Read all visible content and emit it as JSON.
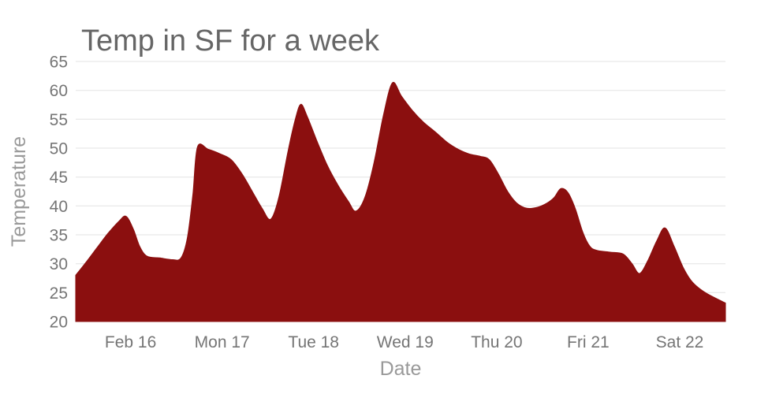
{
  "chart_data": {
    "type": "area",
    "title": "Temp in SF for a week",
    "xlabel": "Date",
    "ylabel": "Temperature",
    "ylim": [
      20,
      65
    ],
    "y_ticks": [
      20,
      25,
      30,
      35,
      40,
      45,
      50,
      55,
      60,
      65
    ],
    "x_range": [
      15.4,
      22.5
    ],
    "x_ticks": [
      {
        "day": 16,
        "label": "Feb 16"
      },
      {
        "day": 17,
        "label": "Mon 17"
      },
      {
        "day": 18,
        "label": "Tue 18"
      },
      {
        "day": 19,
        "label": "Wed 19"
      },
      {
        "day": 20,
        "label": "Thu 20"
      },
      {
        "day": 21,
        "label": "Fri 21"
      },
      {
        "day": 22,
        "label": "Sat 22"
      }
    ],
    "grid": "horizontal",
    "legend": "none",
    "background_color": "#ffffff",
    "gridline_color": "#e3e3e3",
    "title_color": "#666666",
    "axis_title_color": "#999999",
    "tick_label_color": "#757575",
    "series": [
      {
        "name": "Temperature",
        "color": "#8b0f0f",
        "points": [
          [
            15.4,
            28.0
          ],
          [
            15.5,
            30.0
          ],
          [
            15.62,
            32.5
          ],
          [
            15.75,
            35.2
          ],
          [
            15.87,
            37.3
          ],
          [
            15.95,
            38.2
          ],
          [
            16.03,
            36.0
          ],
          [
            16.1,
            33.0
          ],
          [
            16.18,
            31.3
          ],
          [
            16.32,
            31.0
          ],
          [
            16.46,
            30.7
          ],
          [
            16.55,
            31.0
          ],
          [
            16.62,
            34.5
          ],
          [
            16.68,
            42.0
          ],
          [
            16.73,
            50.2
          ],
          [
            16.85,
            49.8
          ],
          [
            16.98,
            49.0
          ],
          [
            17.1,
            48.0
          ],
          [
            17.22,
            45.5
          ],
          [
            17.33,
            42.5
          ],
          [
            17.44,
            39.5
          ],
          [
            17.53,
            37.7
          ],
          [
            17.62,
            41.5
          ],
          [
            17.72,
            49.5
          ],
          [
            17.8,
            55.0
          ],
          [
            17.86,
            57.6
          ],
          [
            17.93,
            55.5
          ],
          [
            18.03,
            51.5
          ],
          [
            18.15,
            47.0
          ],
          [
            18.27,
            43.5
          ],
          [
            18.38,
            40.8
          ],
          [
            18.46,
            39.1
          ],
          [
            18.56,
            41.5
          ],
          [
            18.66,
            47.5
          ],
          [
            18.76,
            55.5
          ],
          [
            18.86,
            61.3
          ],
          [
            18.96,
            59.0
          ],
          [
            19.08,
            56.5
          ],
          [
            19.2,
            54.5
          ],
          [
            19.33,
            52.8
          ],
          [
            19.46,
            51.0
          ],
          [
            19.58,
            49.8
          ],
          [
            19.7,
            49.0
          ],
          [
            19.82,
            48.6
          ],
          [
            19.92,
            48.0
          ],
          [
            20.02,
            45.5
          ],
          [
            20.12,
            42.5
          ],
          [
            20.22,
            40.5
          ],
          [
            20.33,
            39.6
          ],
          [
            20.45,
            39.8
          ],
          [
            20.55,
            40.5
          ],
          [
            20.63,
            41.5
          ],
          [
            20.7,
            43.0
          ],
          [
            20.78,
            42.3
          ],
          [
            20.86,
            39.5
          ],
          [
            20.94,
            35.5
          ],
          [
            21.02,
            33.0
          ],
          [
            21.1,
            32.3
          ],
          [
            21.24,
            32.0
          ],
          [
            21.38,
            31.7
          ],
          [
            21.48,
            30.0
          ],
          [
            21.56,
            28.3
          ],
          [
            21.65,
            30.5
          ],
          [
            21.75,
            34.0
          ],
          [
            21.84,
            36.2
          ],
          [
            21.94,
            33.0
          ],
          [
            22.04,
            29.3
          ],
          [
            22.14,
            26.8
          ],
          [
            22.28,
            25.0
          ],
          [
            22.5,
            23.2
          ]
        ]
      }
    ]
  }
}
